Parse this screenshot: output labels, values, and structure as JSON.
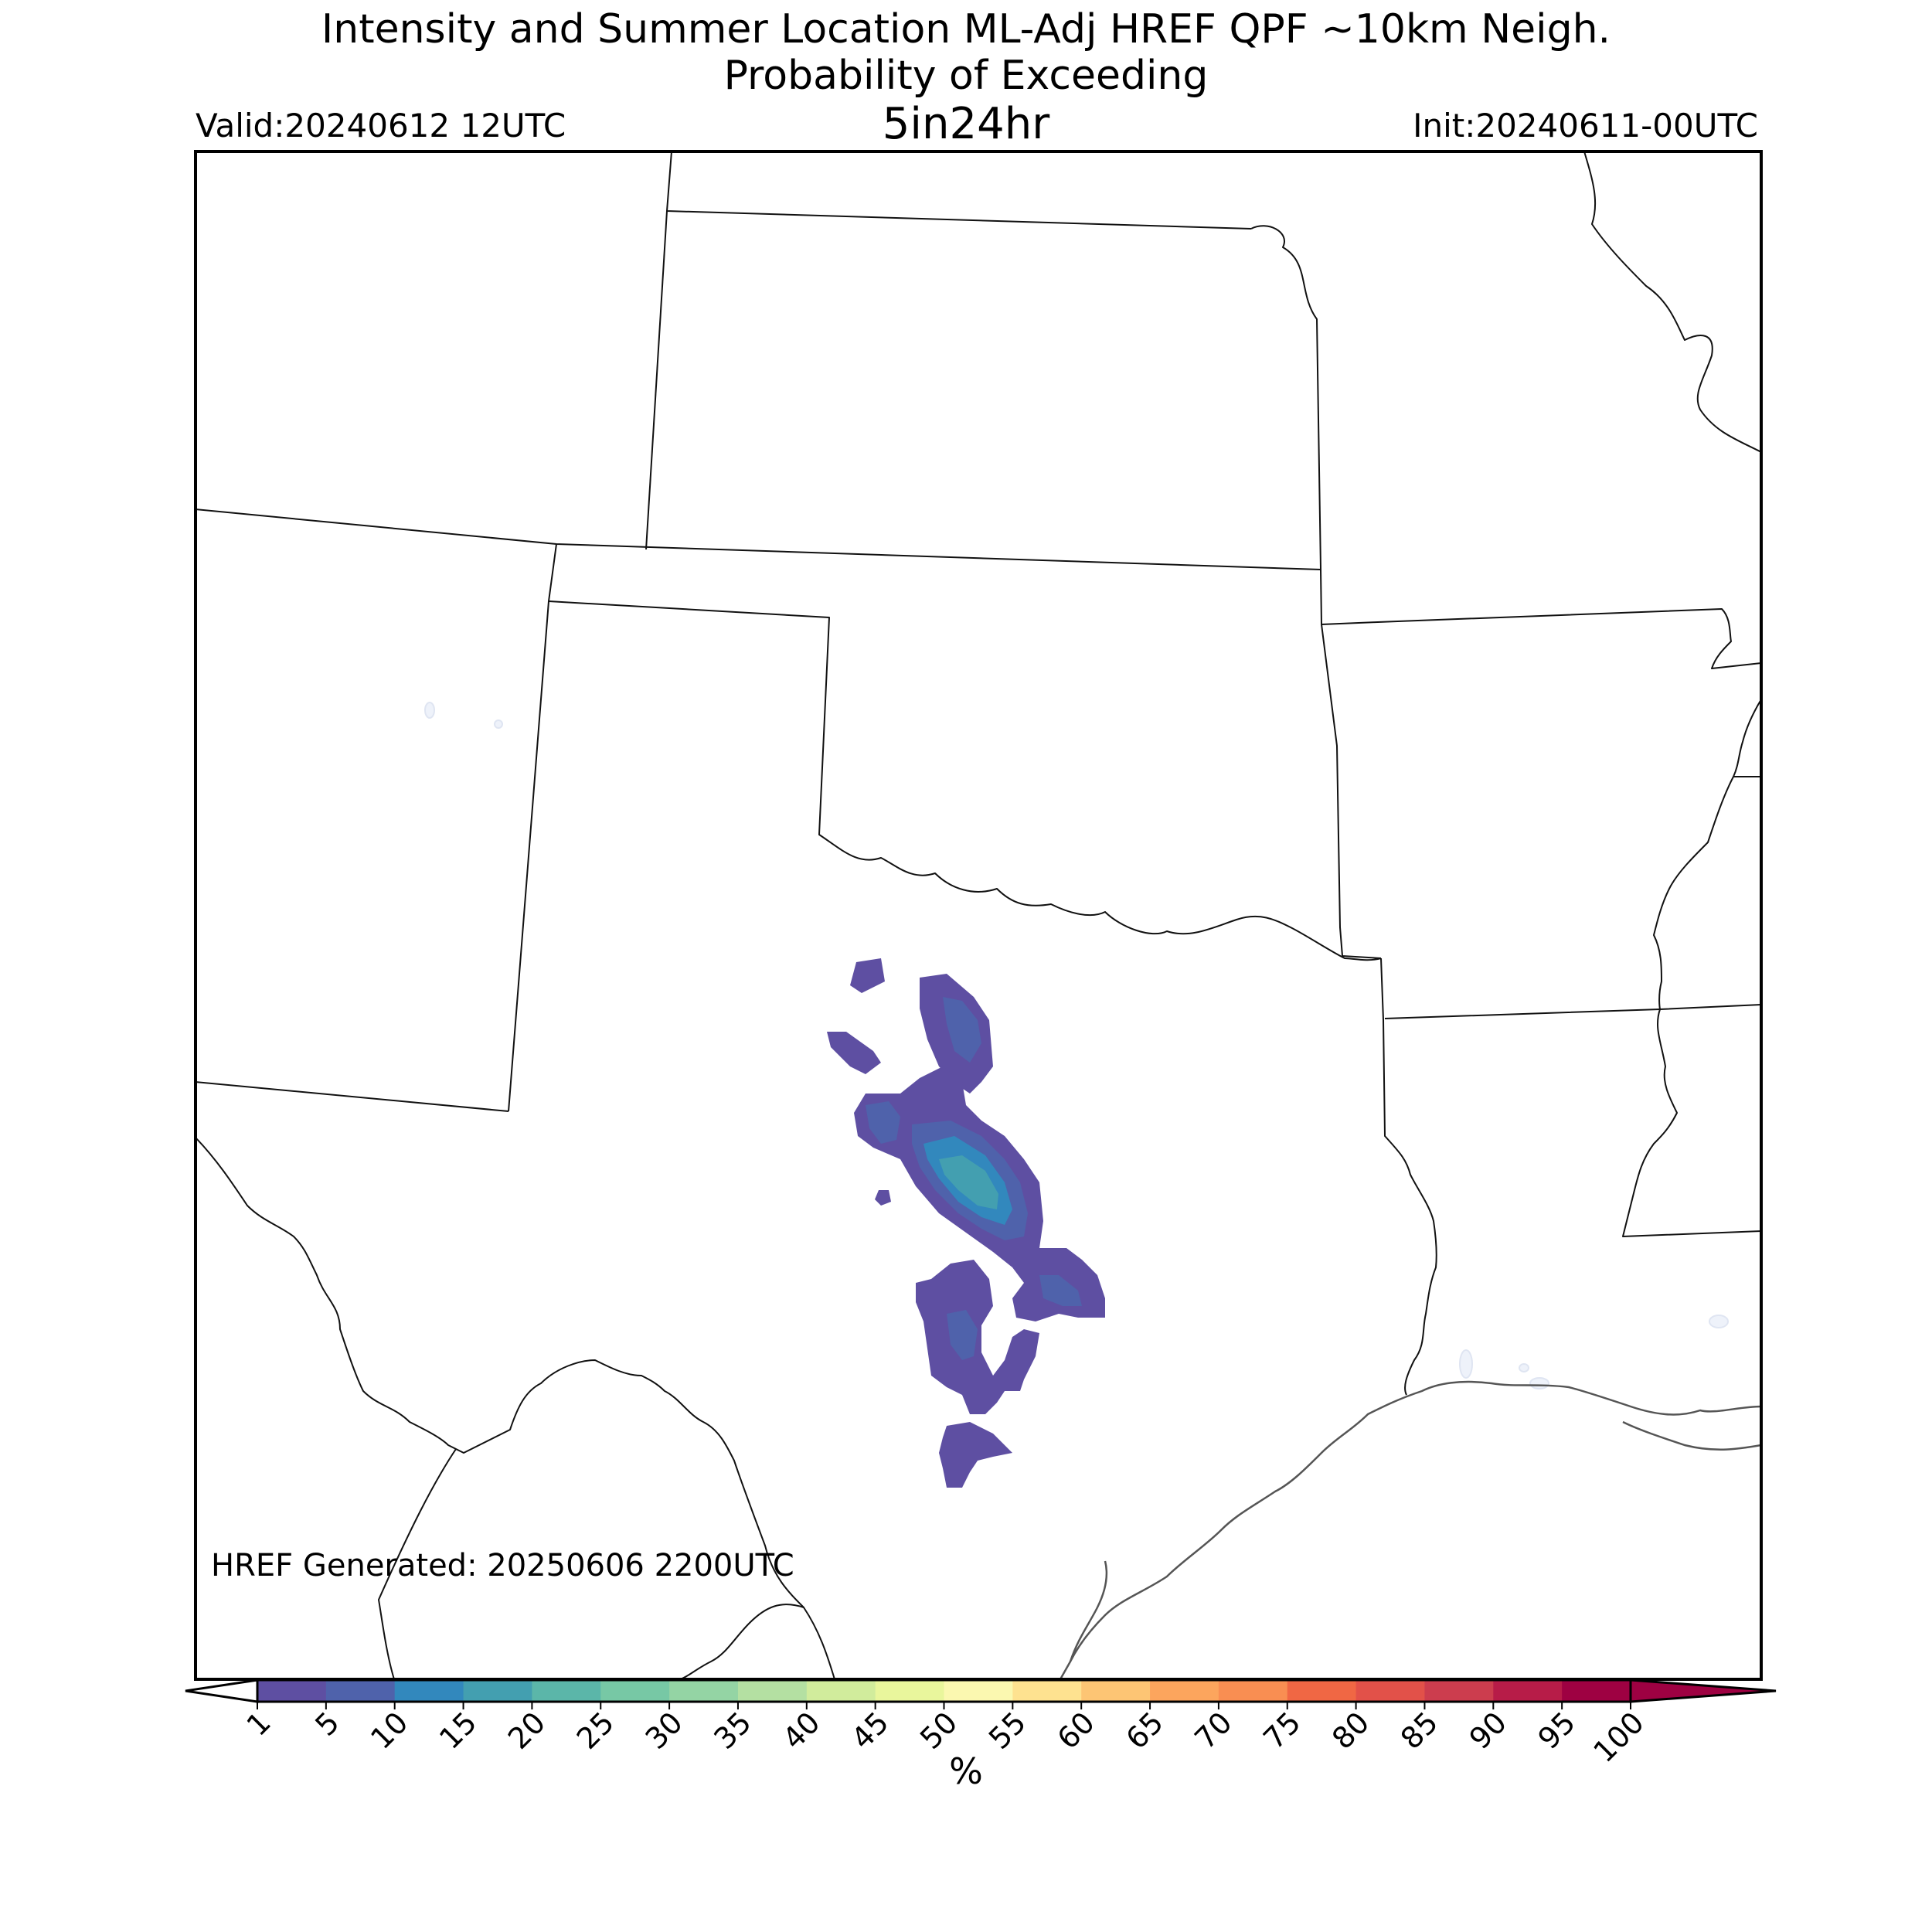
{
  "header": {
    "title_line1": "Intensity and Summer Location ML-Adj HREF QPF ~10km Neigh.",
    "title_line2": "Probability of Exceeding",
    "threshold": "5in24hr",
    "valid": "Valid:20240612 12UTC",
    "init": "Init:20240611-00UTC"
  },
  "map": {
    "generated": "HREF Generated: 20250606 2200UTC",
    "probability_area_max_percent": 20
  },
  "colorbar": {
    "unit": "%",
    "ticks": [
      "1",
      "5",
      "10",
      "15",
      "20",
      "25",
      "30",
      "35",
      "40",
      "45",
      "50",
      "55",
      "60",
      "65",
      "70",
      "75",
      "80",
      "85",
      "90",
      "95",
      "100"
    ],
    "colors": [
      "#5e4fa2",
      "#4f62ab",
      "#3288bd",
      "#439fb0",
      "#5bb6a9",
      "#77c8a5",
      "#94d4a4",
      "#b4e0a2",
      "#d1ec9c",
      "#e9f69c",
      "#fbf8b0",
      "#fee290",
      "#fdc574",
      "#fca55d",
      "#f98e52",
      "#f06744",
      "#e25149",
      "#cc3d4e",
      "#b71c48",
      "#9e0142"
    ],
    "under_color": "#ffffff",
    "over_color": "#9e0142"
  }
}
